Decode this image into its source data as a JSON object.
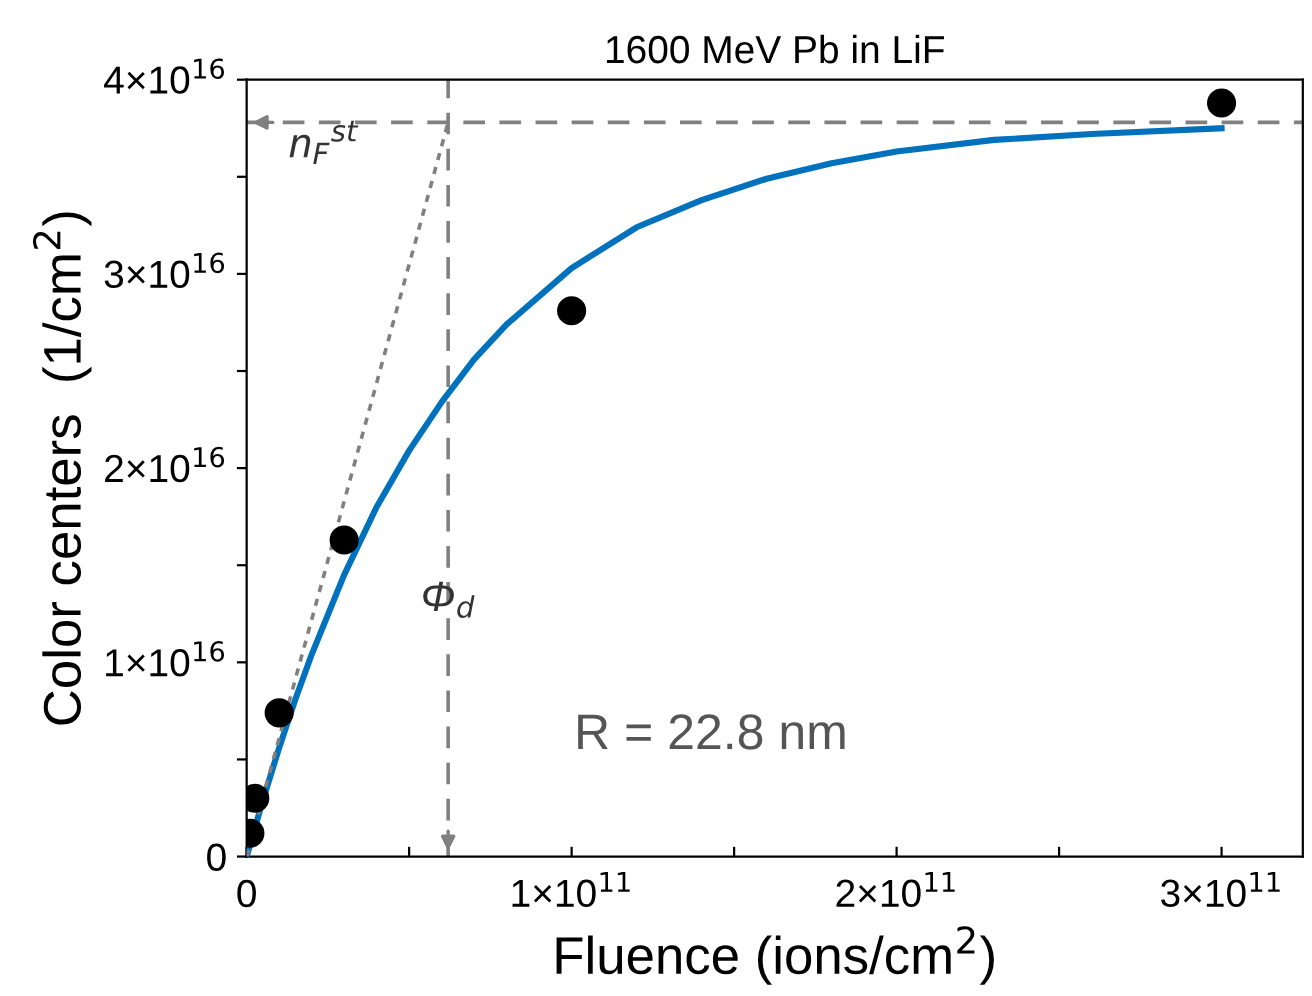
{
  "chart_data": {
    "type": "scatter",
    "title": "1600 MeV Pb in LiF",
    "xlabel": "Fluence (ions/cm$^{2}$)",
    "ylabel": "Color centers  (1/cm$^{2}$)",
    "xlim": [
      0,
      325000000000.0
    ],
    "ylim": [
      0,
      4e+16
    ],
    "xticks": [
      0,
      {
        "value": 50000000000.0,
        "label": null
      },
      {
        "value": 100000000000.0,
        "label": "1×10$^{11}$"
      },
      {
        "value": 150000000000.0,
        "label": null
      },
      {
        "value": 200000000000.0,
        "label": "2×10$^{11}$"
      },
      {
        "value": 250000000000.0,
        "label": null
      },
      {
        "value": 300000000000.0,
        "label": "3×10$^{11}$"
      }
    ],
    "yticks": [
      0,
      {
        "value": 5000000000000000.0,
        "label": null
      },
      {
        "value": 1e+16,
        "label": "1×10$^{16}$"
      },
      {
        "value": 1.5e+16,
        "label": null
      },
      {
        "value": 2e+16,
        "label": "2×10$^{16}$"
      },
      {
        "value": 2.5e+16,
        "label": null
      },
      {
        "value": 3e+16,
        "label": "3×10$^{16}$"
      },
      {
        "value": 3.5e+16,
        "label": null
      },
      {
        "value": 4e+16,
        "label": "4×10$^{16}$"
      }
    ],
    "series": [
      {
        "color": "#000000",
        "marker": "circle",
        "x": [
          1000000000.0,
          2500000000.0,
          10000000000.0,
          30000000000.0,
          100000000000.0,
          300000000000.0
        ],
        "values": [
          1200000000000000.0,
          3000000000000000.0,
          7400000000000000.0,
          1.63e+16,
          2.81e+16,
          3.88e+16
        ]
      },
      {
        "type": "line",
        "color": "#0072bd",
        "marker": "none",
        "line_style": "solid",
        "x": [
          0,
          5000000000.0,
          10000000000.0,
          15000000000.0,
          20000000000.0,
          30000000000.0,
          40000000000.0,
          50000000000.0,
          60000000000.0,
          70000000000.0,
          80000000000.0,
          100000000000.0,
          120000000000.0,
          140000000000.0,
          160000000000.0,
          180000000000.0,
          200000000000.0,
          230000000000.0,
          260000000000.0,
          300000000000.0
        ],
        "values": [
          0,
          2900000000000000.0,
          5600000000000000.0,
          8100000000000000.0,
          1.04e+16,
          1.45e+16,
          1.8e+16,
          2.09e+16,
          2.34e+16,
          2.56e+16,
          2.74e+16,
          3.03e+16,
          3.24e+16,
          3.38e+16,
          3.49e+16,
          3.57e+16,
          3.63e+16,
          3.69e+16,
          3.72e+16,
          3.75e+16
        ]
      },
      {
        "type": "line",
        "color": "#808080",
        "marker": "none",
        "line_style": "dotted",
        "x": [
          0,
          62000000000.0
        ],
        "values": [
          0,
          3.78e+16
        ]
      }
    ],
    "ref_lines": [
      {
        "axis": "y",
        "value": 3.78e+16,
        "label": "n$_{F}$$^{st}$",
        "color": "#808080",
        "line_style": "dashed"
      },
      {
        "axis": "x",
        "value": 62000000000.0,
        "label": "Φ$_{d}$",
        "color": "#808080",
        "line_style": "dashed"
      }
    ],
    "annotations": [
      "R = 22.8 nm"
    ],
    "grid": false,
    "legend": false
  }
}
